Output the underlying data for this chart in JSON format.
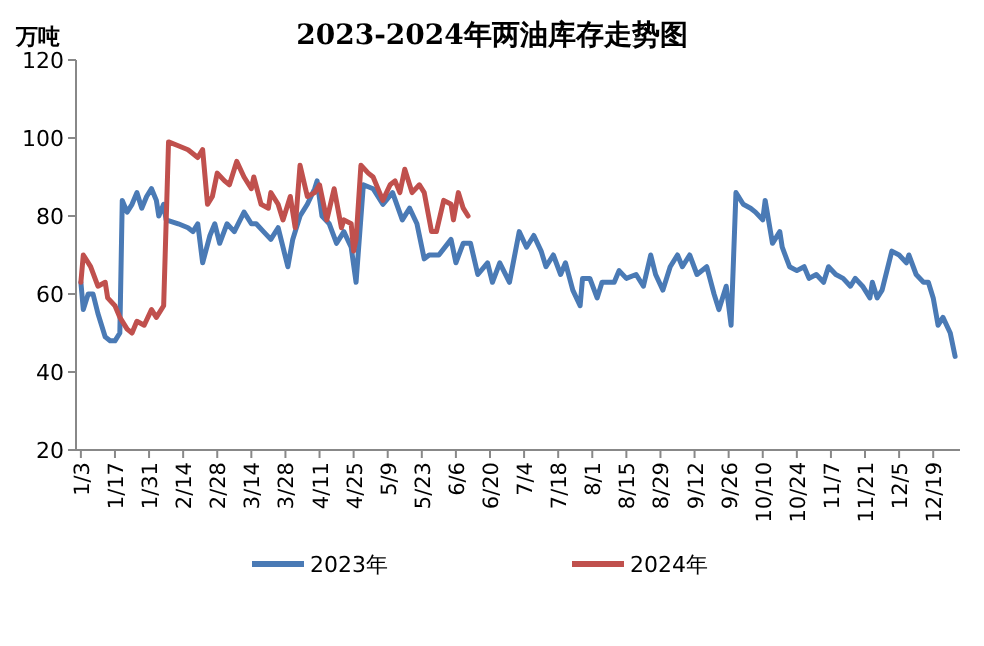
{
  "chart_data": {
    "type": "line",
    "title": "2023-2024年两油库存走势图",
    "ylabel": "万吨",
    "xlim": [
      "--01-01",
      "--12-30"
    ],
    "ylim": [
      20,
      120
    ],
    "yticks": [
      20,
      40,
      60,
      80,
      100,
      120
    ],
    "xticks": [
      {
        "value": "--01-03",
        "label": "1/3"
      },
      {
        "value": "--01-17",
        "label": "1/17"
      },
      {
        "value": "--01-31",
        "label": "1/31"
      },
      {
        "value": "--02-14",
        "label": "2/14"
      },
      {
        "value": "--02-28",
        "label": "2/28"
      },
      {
        "value": "--03-14",
        "label": "3/14"
      },
      {
        "value": "--03-28",
        "label": "3/28"
      },
      {
        "value": "--04-11",
        "label": "4/11"
      },
      {
        "value": "--04-25",
        "label": "4/25"
      },
      {
        "value": "--05-09",
        "label": "5/9"
      },
      {
        "value": "--05-23",
        "label": "5/23"
      },
      {
        "value": "--06-06",
        "label": "6/6"
      },
      {
        "value": "--06-20",
        "label": "6/20"
      },
      {
        "value": "--07-04",
        "label": "7/4"
      },
      {
        "value": "--07-18",
        "label": "7/18"
      },
      {
        "value": "--08-01",
        "label": "8/1"
      },
      {
        "value": "--08-15",
        "label": "8/15"
      },
      {
        "value": "--08-29",
        "label": "8/29"
      },
      {
        "value": "--09-12",
        "label": "9/12"
      },
      {
        "value": "--09-26",
        "label": "9/26"
      },
      {
        "value": "--10-10",
        "label": "10/10"
      },
      {
        "value": "--10-24",
        "label": "10/24"
      },
      {
        "value": "--11-07",
        "label": "11/7"
      },
      {
        "value": "--11-21",
        "label": "11/21"
      },
      {
        "value": "--12-05",
        "label": "12/5"
      },
      {
        "value": "--12-19",
        "label": "12/19"
      }
    ],
    "legend": "bottom",
    "series": [
      {
        "name": "2023年",
        "color": "#4a7ab5",
        "x": [
          "--01-03",
          "--01-04",
          "--01-06",
          "--01-08",
          "--01-10",
          "--01-13",
          "--01-15",
          "--01-17",
          "--01-19",
          "--01-20",
          "--01-22",
          "--01-24",
          "--01-26",
          "--01-28",
          "--01-30",
          "--02-01",
          "--02-03",
          "--02-04",
          "--02-06",
          "--02-07",
          "--02-12",
          "--02-16",
          "--02-18",
          "--02-20",
          "--02-22",
          "--02-25",
          "--02-27",
          "--03-01",
          "--03-04",
          "--03-07",
          "--03-11",
          "--03-14",
          "--03-16",
          "--03-19",
          "--03-22",
          "--03-25",
          "--03-27",
          "--03-29",
          "--03-31",
          "--04-03",
          "--04-06",
          "--04-09",
          "--04-10",
          "--04-12",
          "--04-15",
          "--04-18",
          "--04-21",
          "--04-24",
          "--04-26",
          "--04-29",
          "--05-03",
          "--05-07",
          "--05-11",
          "--05-15",
          "--05-18",
          "--05-21",
          "--05-24",
          "--05-26",
          "--05-30",
          "--06-04",
          "--06-06",
          "--06-09",
          "--06-12",
          "--06-15",
          "--06-19",
          "--06-21",
          "--06-24",
          "--06-28",
          "--07-02",
          "--07-05",
          "--07-08",
          "--07-11",
          "--07-13",
          "--07-16",
          "--07-19",
          "--07-21",
          "--07-24",
          "--07-27",
          "--07-28",
          "--07-31",
          "--08-03",
          "--08-05",
          "--08-10",
          "--08-12",
          "--08-15",
          "--08-19",
          "--08-22",
          "--08-25",
          "--08-27",
          "--08-30",
          "--09-02",
          "--09-05",
          "--09-07",
          "--09-10",
          "--09-13",
          "--09-17",
          "--09-20",
          "--09-22",
          "--09-25",
          "--09-27",
          "--09-29",
          "--10-02",
          "--10-05",
          "--10-07",
          "--10-10",
          "--10-11",
          "--10-14",
          "--10-17",
          "--10-18",
          "--10-21",
          "--10-24",
          "--10-27",
          "--10-29",
          "--11-01",
          "--11-04",
          "--11-06",
          "--11-09",
          "--11-12",
          "--11-15",
          "--11-17",
          "--11-20",
          "--11-23",
          "--11-24",
          "--11-26",
          "--11-28",
          "--12-02",
          "--12-05",
          "--12-08",
          "--12-09",
          "--12-12",
          "--12-15",
          "--12-17",
          "--12-19",
          "--12-21",
          "--12-23",
          "--12-26",
          "--12-28"
        ],
        "values": [
          63,
          56,
          60,
          60,
          55,
          49,
          48,
          48,
          50,
          84,
          81,
          83,
          86,
          82,
          85,
          87,
          84,
          80,
          83,
          79,
          78,
          77,
          76,
          78,
          68,
          75,
          78,
          73,
          78,
          76,
          81,
          78,
          78,
          76,
          74,
          77,
          72,
          67,
          74,
          80,
          83,
          87,
          89,
          80,
          78,
          73,
          76,
          72,
          63,
          88,
          87,
          83,
          86,
          79,
          82,
          78,
          69,
          70,
          70,
          74,
          68,
          73,
          73,
          65,
          68,
          63,
          68,
          63,
          76,
          72,
          75,
          71,
          67,
          70,
          65,
          68,
          61,
          57,
          64,
          64,
          59,
          63,
          63,
          66,
          64,
          65,
          62,
          70,
          65,
          61,
          67,
          70,
          67,
          70,
          65,
          67,
          60,
          56,
          62,
          52,
          86,
          83,
          82,
          81,
          79,
          84,
          73,
          76,
          72,
          67,
          66,
          67,
          64,
          65,
          63,
          67,
          65,
          64,
          62,
          64,
          62,
          59,
          63,
          59,
          61,
          71,
          70,
          68,
          70,
          65,
          63,
          63,
          59,
          52,
          54,
          50,
          44
        ]
      },
      {
        "name": "2024年",
        "color": "#c0504d",
        "x": [
          "--01-03",
          "--01-04",
          "--01-07",
          "--01-10",
          "--01-13",
          "--01-14",
          "--01-17",
          "--01-19",
          "--01-22",
          "--01-24",
          "--01-26",
          "--01-29",
          "--02-01",
          "--02-03",
          "--02-06",
          "--02-08",
          "--02-12",
          "--02-16",
          "--02-20",
          "--02-22",
          "--02-24",
          "--02-26",
          "--02-28",
          "--03-03",
          "--03-05",
          "--03-08",
          "--03-11",
          "--03-14",
          "--03-15",
          "--03-18",
          "--03-21",
          "--03-22",
          "--03-25",
          "--03-27",
          "--03-30",
          "--04-01",
          "--04-03",
          "--04-06",
          "--04-09",
          "--04-11",
          "--04-14",
          "--04-17",
          "--04-20",
          "--04-21",
          "--04-24",
          "--04-25",
          "--04-26",
          "--04-28",
          "--05-01",
          "--05-03",
          "--05-07",
          "--05-10",
          "--05-12",
          "--05-14",
          "--05-16",
          "--05-19",
          "--05-22",
          "--05-24",
          "--05-27",
          "--05-29",
          "--06-01",
          "--06-04",
          "--06-05",
          "--06-07",
          "--06-09",
          "--06-11"
        ],
        "values": [
          63,
          70,
          67,
          62,
          63,
          59,
          57,
          54,
          51,
          50,
          53,
          52,
          56,
          54,
          57,
          99,
          98,
          97,
          95,
          97,
          83,
          85,
          91,
          89,
          88,
          94,
          90,
          87,
          90,
          83,
          82,
          86,
          83,
          79,
          85,
          77,
          93,
          85,
          86,
          88,
          79,
          87,
          77,
          79,
          78,
          71,
          74,
          93,
          91,
          90,
          84,
          88,
          89,
          86,
          92,
          86,
          88,
          86,
          76,
          76,
          84,
          83,
          79,
          86,
          82,
          80
        ]
      }
    ]
  }
}
